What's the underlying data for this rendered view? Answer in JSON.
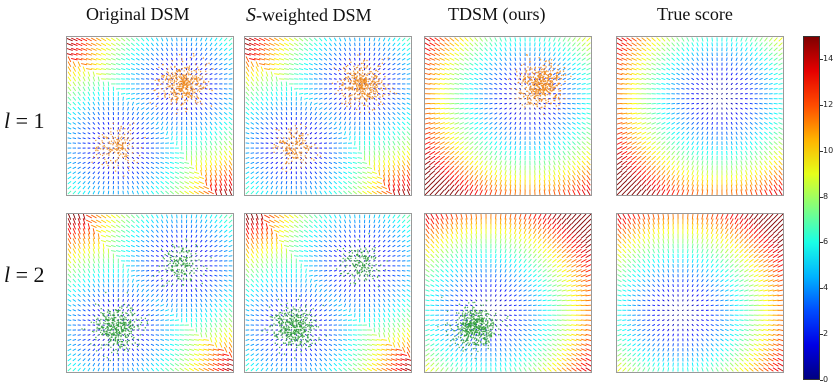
{
  "columns": [
    {
      "title": "Original DSM",
      "math_prefix": ""
    },
    {
      "title": "-weighted DSM",
      "math_prefix": "S"
    },
    {
      "title": "TDSM (ours)",
      "math_prefix": ""
    },
    {
      "title": "True score",
      "math_prefix": ""
    }
  ],
  "rows": [
    {
      "var": "l",
      "rest": " = 1"
    },
    {
      "var": "l",
      "rest": " = 2"
    }
  ],
  "colorbar": {
    "ticks": [
      "0",
      "2",
      "4",
      "6",
      "8",
      "10",
      "12",
      "14"
    ],
    "min": 0,
    "max": 15,
    "colormap": "jet"
  },
  "colors": {
    "row1_samples": "#f08a1c",
    "row2_samples": "#2f9e3a"
  }
}
